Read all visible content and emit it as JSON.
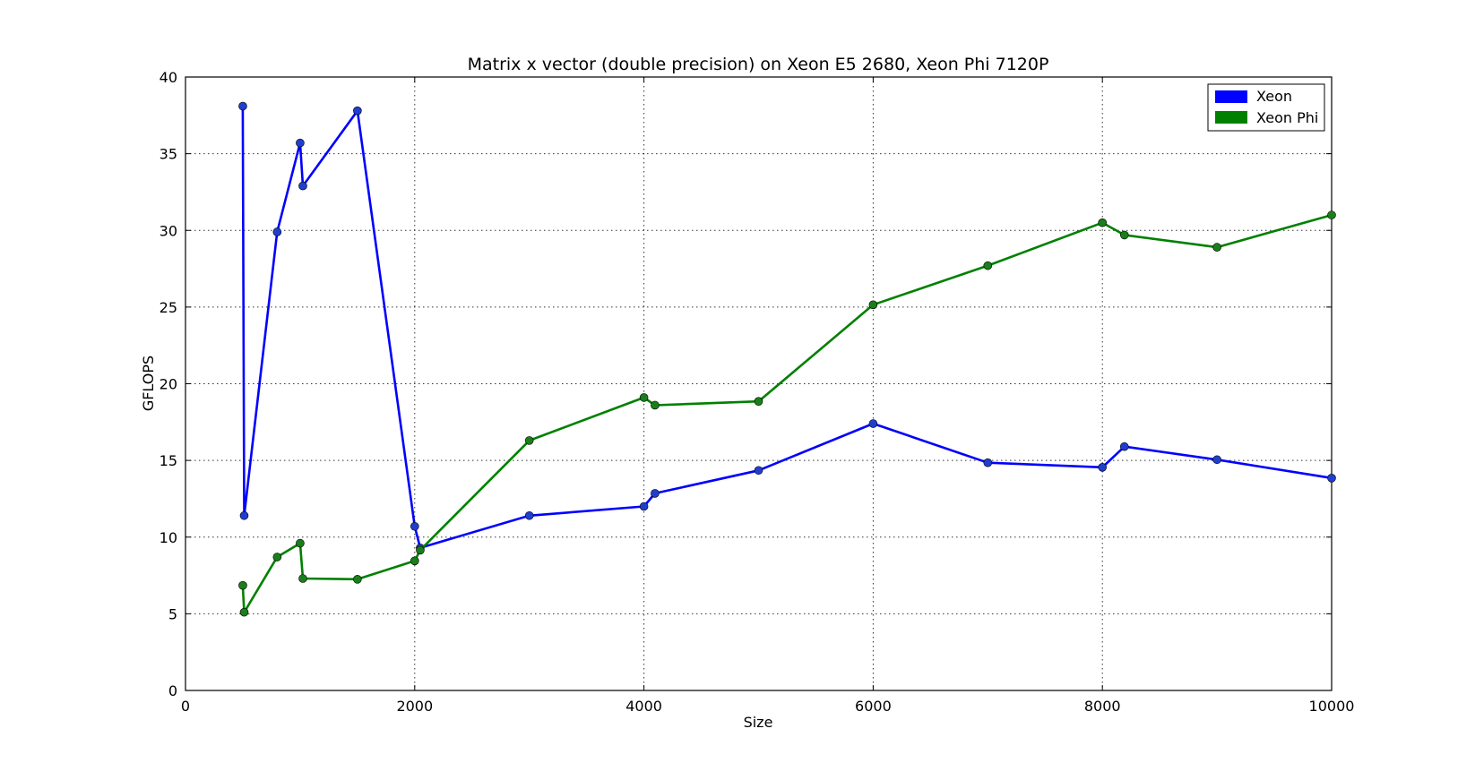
{
  "chart_data": {
    "type": "line",
    "title": "Matrix x vector (double precision) on Xeon E5 2680, Xeon Phi 7120P",
    "xlabel": "Size",
    "ylabel": "GFLOPS",
    "xlim": [
      0,
      10000
    ],
    "ylim": [
      0,
      40
    ],
    "xticks": [
      0,
      2000,
      4000,
      6000,
      8000,
      10000
    ],
    "yticks": [
      0,
      5,
      10,
      15,
      20,
      25,
      30,
      35,
      40
    ],
    "grid": true,
    "legend_position": "top-right",
    "x": [
      500,
      512,
      800,
      1000,
      1024,
      1500,
      2000,
      2048,
      3000,
      4000,
      4096,
      5000,
      6000,
      7000,
      8000,
      8192,
      9000,
      10000
    ],
    "series": [
      {
        "name": "Xeon",
        "color": "#0000ff",
        "marker_color": "#1f3fcf",
        "values": [
          38.1,
          11.4,
          29.9,
          35.7,
          32.9,
          37.8,
          10.7,
          9.3,
          11.4,
          12.0,
          12.85,
          14.35,
          17.4,
          14.85,
          14.55,
          15.9,
          15.05,
          13.85
        ]
      },
      {
        "name": "Xeon Phi",
        "color": "#008000",
        "marker_color": "#1a7f1a",
        "values": [
          6.85,
          5.1,
          8.7,
          9.6,
          7.3,
          7.25,
          8.45,
          9.15,
          16.3,
          19.1,
          18.6,
          18.85,
          25.15,
          27.7,
          30.5,
          29.7,
          28.9,
          31.0
        ]
      }
    ]
  }
}
